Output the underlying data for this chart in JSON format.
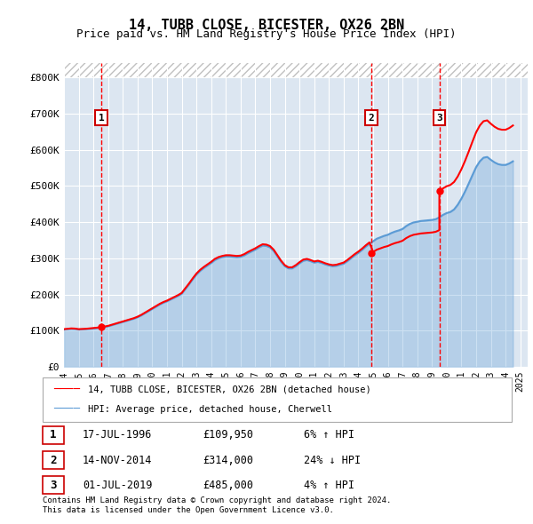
{
  "title": "14, TUBB CLOSE, BICESTER, OX26 2BN",
  "subtitle": "Price paid vs. HM Land Registry's House Price Index (HPI)",
  "legend_line1": "14, TUBB CLOSE, BICESTER, OX26 2BN (detached house)",
  "legend_line2": "HPI: Average price, detached house, Cherwell",
  "footer_line1": "Contains HM Land Registry data © Crown copyright and database right 2024.",
  "footer_line2": "This data is licensed under the Open Government Licence v3.0.",
  "transactions": [
    {
      "label": "1",
      "date": "17-JUL-1996",
      "price": 109950,
      "pct": "6% ↑ HPI",
      "x": 1996.54
    },
    {
      "label": "2",
      "date": "14-NOV-2014",
      "price": 314000,
      "pct": "24% ↓ HPI",
      "x": 2014.87
    },
    {
      "label": "3",
      "date": "01-JUL-2019",
      "price": 485000,
      "pct": "4% ↑ HPI",
      "x": 2019.5
    }
  ],
  "hpi_data": {
    "years": [
      1994.0,
      1994.25,
      1994.5,
      1994.75,
      1995.0,
      1995.25,
      1995.5,
      1995.75,
      1996.0,
      1996.25,
      1996.5,
      1996.75,
      1997.0,
      1997.25,
      1997.5,
      1997.75,
      1998.0,
      1998.25,
      1998.5,
      1998.75,
      1999.0,
      1999.25,
      1999.5,
      1999.75,
      2000.0,
      2000.25,
      2000.5,
      2000.75,
      2001.0,
      2001.25,
      2001.5,
      2001.75,
      2002.0,
      2002.25,
      2002.5,
      2002.75,
      2003.0,
      2003.25,
      2003.5,
      2003.75,
      2004.0,
      2004.25,
      2004.5,
      2004.75,
      2005.0,
      2005.25,
      2005.5,
      2005.75,
      2006.0,
      2006.25,
      2006.5,
      2006.75,
      2007.0,
      2007.25,
      2007.5,
      2007.75,
      2008.0,
      2008.25,
      2008.5,
      2008.75,
      2009.0,
      2009.25,
      2009.5,
      2009.75,
      2010.0,
      2010.25,
      2010.5,
      2010.75,
      2011.0,
      2011.25,
      2011.5,
      2011.75,
      2012.0,
      2012.25,
      2012.5,
      2012.75,
      2013.0,
      2013.25,
      2013.5,
      2013.75,
      2014.0,
      2014.25,
      2014.5,
      2014.75,
      2015.0,
      2015.25,
      2015.5,
      2015.75,
      2016.0,
      2016.25,
      2016.5,
      2016.75,
      2017.0,
      2017.25,
      2017.5,
      2017.75,
      2018.0,
      2018.25,
      2018.5,
      2018.75,
      2019.0,
      2019.25,
      2019.5,
      2019.75,
      2020.0,
      2020.25,
      2020.5,
      2020.75,
      2021.0,
      2021.25,
      2021.5,
      2021.75,
      2022.0,
      2022.25,
      2022.5,
      2022.75,
      2023.0,
      2023.25,
      2023.5,
      2023.75,
      2024.0,
      2024.25,
      2024.5
    ],
    "values": [
      103000,
      104000,
      105000,
      104500,
      103000,
      103500,
      104000,
      105000,
      106000,
      107000,
      108500,
      110000,
      112000,
      115000,
      118000,
      121000,
      124000,
      127000,
      130000,
      133000,
      137000,
      142000,
      148000,
      154000,
      160000,
      166000,
      172000,
      177000,
      181000,
      186000,
      191000,
      196000,
      202000,
      215000,
      228000,
      242000,
      255000,
      265000,
      273000,
      280000,
      287000,
      295000,
      300000,
      303000,
      305000,
      305000,
      304000,
      303000,
      304000,
      308000,
      314000,
      319000,
      324000,
      330000,
      335000,
      334000,
      330000,
      320000,
      305000,
      290000,
      278000,
      272000,
      272000,
      278000,
      286000,
      293000,
      295000,
      292000,
      288000,
      290000,
      287000,
      283000,
      280000,
      278000,
      279000,
      282000,
      285000,
      292000,
      300000,
      308000,
      315000,
      323000,
      332000,
      340000,
      347000,
      354000,
      358000,
      362000,
      365000,
      370000,
      374000,
      377000,
      381000,
      389000,
      395000,
      399000,
      401000,
      403000,
      404000,
      405000,
      406000,
      408000,
      413000,
      420000,
      425000,
      428000,
      435000,
      448000,
      465000,
      485000,
      507000,
      530000,
      552000,
      568000,
      578000,
      580000,
      572000,
      565000,
      560000,
      558000,
      558000,
      562000,
      568000
    ],
    "color": "#5b9bd5",
    "linewidth": 1.5
  },
  "price_line": {
    "color": "#ff0000",
    "linewidth": 1.5,
    "segments": [
      {
        "x": [
          1996.54,
          1996.54
        ],
        "y": [
          109950,
          109950
        ]
      },
      {
        "x": [
          1996.54,
          2014.87
        ],
        "y_interp": true
      },
      {
        "x": [
          2014.87,
          2019.5
        ],
        "y_interp": true
      },
      {
        "x": [
          2019.5,
          2024.5
        ],
        "y_interp": true
      }
    ]
  },
  "ylim": [
    0,
    800000
  ],
  "xlim": [
    1994,
    2025.5
  ],
  "yticks": [
    0,
    100000,
    200000,
    300000,
    400000,
    500000,
    600000,
    700000,
    800000
  ],
  "ytick_labels": [
    "£0",
    "£100K",
    "£200K",
    "£300K",
    "£400K",
    "£500K",
    "£600K",
    "£700K",
    "£800K"
  ],
  "xticks": [
    1994,
    1995,
    1996,
    1997,
    1998,
    1999,
    2000,
    2001,
    2002,
    2003,
    2004,
    2005,
    2006,
    2007,
    2008,
    2009,
    2010,
    2011,
    2012,
    2013,
    2014,
    2015,
    2016,
    2017,
    2018,
    2019,
    2020,
    2021,
    2022,
    2023,
    2024,
    2025
  ],
  "bg_color": "#dce6f1",
  "hatch_color": "#c0c0c0",
  "grid_color": "#ffffff",
  "transaction_line_color": "#ff0000",
  "marker_box_color": "#cc0000",
  "marker_box_fill": "#ffffff"
}
